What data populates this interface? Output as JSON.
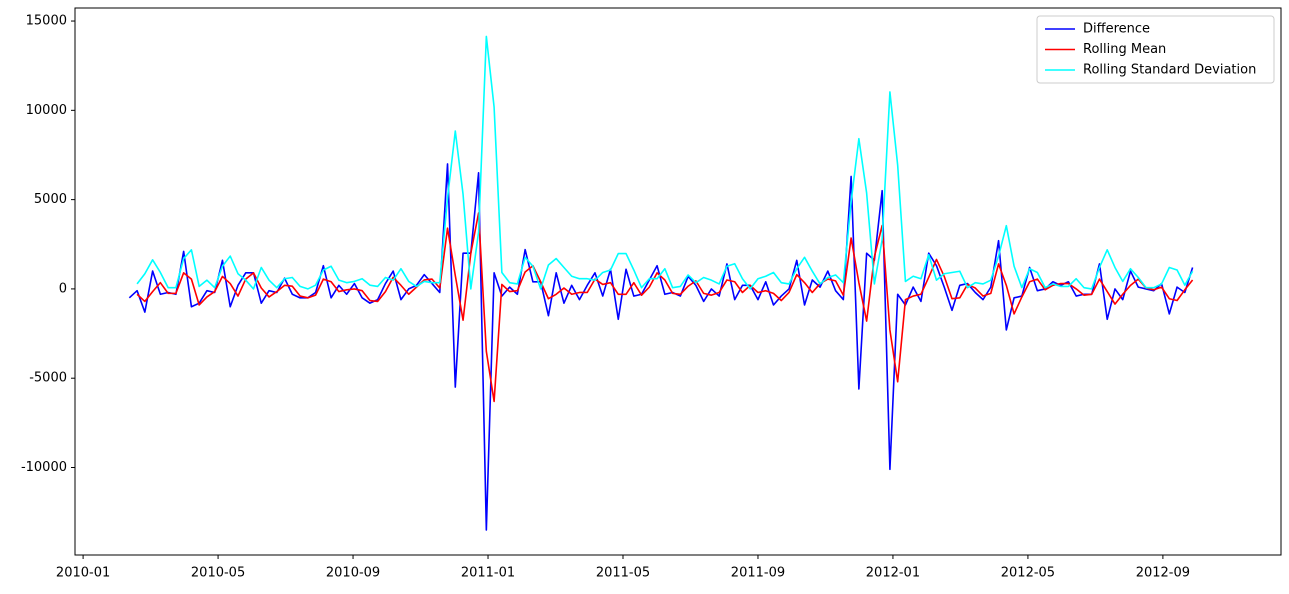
{
  "chart_data": {
    "type": "line",
    "x": [
      1.37,
      1.6,
      1.83,
      2.06,
      2.29,
      2.52,
      2.75,
      2.98,
      3.21,
      3.44,
      3.67,
      3.9,
      4.13,
      4.36,
      4.59,
      4.82,
      5.05,
      5.28,
      5.51,
      5.74,
      5.97,
      6.2,
      6.43,
      6.66,
      6.89,
      7.12,
      7.35,
      7.58,
      7.81,
      8.04,
      8.27,
      8.5,
      8.73,
      8.96,
      9.19,
      9.42,
      9.65,
      9.88,
      10.11,
      10.34,
      10.57,
      10.8,
      11.03,
      11.26,
      11.49,
      11.72,
      11.95,
      12.18,
      12.41,
      12.64,
      12.87,
      13.1,
      13.33,
      13.56,
      13.79,
      14.02,
      14.25,
      14.48,
      14.71,
      14.94,
      15.17,
      15.4,
      15.63,
      15.86,
      16.09,
      16.32,
      16.55,
      16.78,
      17.01,
      17.24,
      17.47,
      17.7,
      17.93,
      18.16,
      18.39,
      18.62,
      18.85,
      19.08,
      19.31,
      19.54,
      19.77,
      20.0,
      20.23,
      20.46,
      20.69,
      20.92,
      21.15,
      21.38,
      21.61,
      21.84,
      22.07,
      22.3,
      22.53,
      22.76,
      22.99,
      23.22,
      23.45,
      23.68,
      23.91,
      24.14,
      24.37,
      24.6,
      24.83,
      25.06,
      25.29,
      25.52,
      25.75,
      25.98,
      26.21,
      26.44,
      26.67,
      26.9,
      27.13,
      27.36,
      27.59,
      27.82,
      28.05,
      28.28,
      28.51,
      28.74,
      28.97,
      29.2,
      29.43,
      29.66,
      29.89,
      30.12,
      30.35,
      30.58,
      30.81,
      31.04,
      31.27,
      31.5,
      31.73,
      31.96,
      32.19,
      32.42,
      32.65,
      32.88
    ],
    "series": [
      {
        "name": "Difference",
        "color": "#0000ff",
        "values": [
          -500,
          -100,
          -1300,
          1000,
          -300,
          -200,
          -300,
          2100,
          -1000,
          -800,
          -100,
          -200,
          1600,
          -1000,
          200,
          900,
          900,
          -800,
          -100,
          -200,
          600,
          -300,
          -500,
          -500,
          -200,
          1300,
          -500,
          200,
          -300,
          300,
          -500,
          -800,
          -600,
          300,
          1000,
          -600,
          0,
          200,
          800,
          300,
          -200,
          7000,
          -5500,
          2000,
          2000,
          6500,
          -13500,
          900,
          -400,
          100,
          -300,
          2200,
          400,
          400,
          -1500,
          900,
          -800,
          200,
          -600,
          200,
          900,
          -400,
          1100,
          -1700,
          1100,
          -400,
          -300,
          500,
          1300,
          -300,
          -200,
          -400,
          700,
          200,
          -700,
          0,
          -400,
          1400,
          -600,
          200,
          200,
          -600,
          400,
          -900,
          -400,
          0,
          1600,
          -900,
          500,
          100,
          1000,
          -100,
          -600,
          6300,
          -5600,
          2000,
          1600,
          5500,
          -10100,
          -300,
          -900,
          100,
          -700,
          2000,
          1300,
          100,
          -1200,
          200,
          300,
          -200,
          -600,
          100,
          2700,
          -2300,
          -500,
          -400,
          1200,
          -100,
          0,
          400,
          200,
          400,
          -400,
          -300,
          -300,
          1400,
          -1700,
          0,
          -600,
          1000,
          100,
          0,
          -100,
          300,
          -1400,
          100,
          -200,
          1200
        ]
      },
      {
        "name": "Rolling Mean",
        "color": "#ff0000",
        "values": [
          null,
          -300,
          -700,
          -150,
          350,
          -250,
          -250,
          900,
          550,
          -900,
          -450,
          -150,
          700,
          300,
          -400,
          550,
          900,
          50,
          -450,
          -150,
          200,
          150,
          -400,
          -500,
          -350,
          550,
          400,
          -150,
          -50,
          0,
          -100,
          -650,
          -700,
          -150,
          650,
          200,
          -300,
          100,
          500,
          550,
          50,
          3400,
          750,
          -1750,
          2000,
          4250,
          -3500,
          -6300,
          250,
          -150,
          -100,
          950,
          1300,
          400,
          -550,
          -300,
          50,
          -300,
          -200,
          -200,
          550,
          250,
          350,
          -300,
          -300,
          350,
          -350,
          100,
          900,
          500,
          -250,
          -300,
          150,
          450,
          -250,
          -350,
          -200,
          500,
          400,
          -200,
          200,
          -200,
          -100,
          -250,
          -650,
          -200,
          800,
          350,
          -200,
          300,
          550,
          450,
          -350,
          2850,
          350,
          -1800,
          1800,
          3550,
          -2300,
          -5200,
          -600,
          -400,
          -300,
          650,
          1650,
          700,
          -550,
          -500,
          250,
          50,
          -400,
          -250,
          1400,
          200,
          -1400,
          -450,
          400,
          550,
          -50,
          200,
          300,
          300,
          0,
          -350,
          -300,
          550,
          -150,
          -850,
          -300,
          200,
          550,
          50,
          -50,
          100,
          -550,
          -650,
          -50,
          500
        ]
      },
      {
        "name": "Rolling Standard Deviation",
        "color": "#00ffff",
        "values": [
          null,
          280,
          850,
          1630,
          920,
          70,
          70,
          1700,
          2190,
          140,
          490,
          70,
          1270,
          1840,
          850,
          490,
          0,
          1200,
          490,
          70,
          570,
          640,
          140,
          0,
          210,
          1060,
          1270,
          490,
          350,
          420,
          570,
          210,
          140,
          640,
          490,
          1130,
          420,
          140,
          420,
          350,
          350,
          5090,
          8840,
          5300,
          0,
          3180,
          14140,
          10180,
          920,
          350,
          280,
          1770,
          1270,
          0,
          1340,
          1700,
          1200,
          710,
          570,
          570,
          490,
          920,
          1060,
          1980,
          1980,
          1060,
          70,
          570,
          570,
          1130,
          70,
          140,
          780,
          350,
          640,
          490,
          280,
          1270,
          1410,
          570,
          0,
          570,
          710,
          920,
          350,
          280,
          1130,
          1770,
          990,
          280,
          640,
          780,
          350,
          4880,
          8410,
          5370,
          280,
          2760,
          11030,
          6930,
          420,
          710,
          570,
          1910,
          490,
          850,
          920,
          990,
          70,
          350,
          280,
          490,
          1840,
          3540,
          1270,
          70,
          1130,
          920,
          70,
          280,
          140,
          140,
          570,
          70,
          0,
          1200,
          2190,
          1200,
          420,
          1130,
          640,
          70,
          70,
          280,
          1200,
          1060,
          210,
          990
        ]
      }
    ],
    "xlim": [
      -0.24,
      35.5
    ],
    "xticks": [
      {
        "value": 0,
        "label": "2010-01"
      },
      {
        "value": 4,
        "label": "2010-05"
      },
      {
        "value": 8,
        "label": "2010-09"
      },
      {
        "value": 12,
        "label": "2011-01"
      },
      {
        "value": 16,
        "label": "2011-05"
      },
      {
        "value": 20,
        "label": "2011-09"
      },
      {
        "value": 24,
        "label": "2012-01"
      },
      {
        "value": 28,
        "label": "2012-05"
      },
      {
        "value": 32,
        "label": "2012-09"
      }
    ],
    "ylim": [
      -14900,
      15730
    ],
    "yticks": [
      -10000,
      -5000,
      0,
      5000,
      10000,
      15000
    ],
    "grid": false,
    "legend": "upper right"
  }
}
